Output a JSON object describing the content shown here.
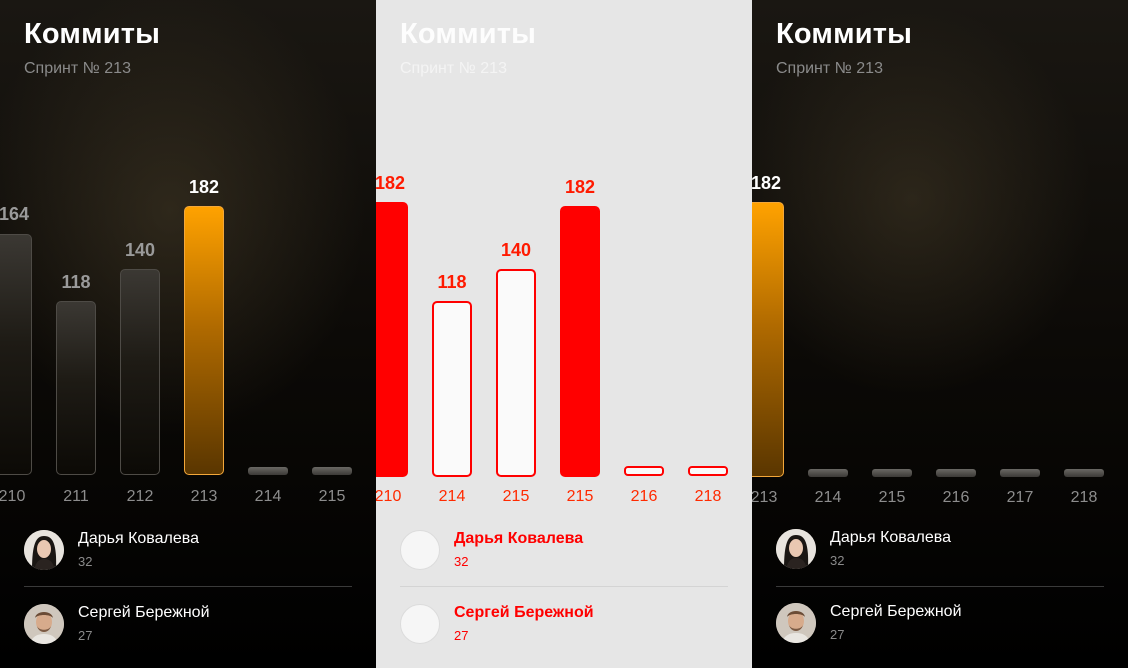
{
  "screen": {
    "title": "Коммиты",
    "subtitle": "Спринт № 213"
  },
  "panels": [
    {
      "theme": "dark",
      "bars": [
        {
          "sprint": "210",
          "value": "164"
        },
        {
          "sprint": "211",
          "value": "118"
        },
        {
          "sprint": "212",
          "value": "140"
        },
        {
          "sprint": "213",
          "value": "182"
        },
        {
          "sprint": "214",
          "value": ""
        },
        {
          "sprint": "215",
          "value": ""
        }
      ],
      "active_sprint": "213"
    },
    {
      "theme": "diff",
      "bars": [
        {
          "sprint": "210",
          "value": "182"
        },
        {
          "sprint": "214",
          "value": "118"
        },
        {
          "sprint": "215",
          "value": "140"
        },
        {
          "sprint": "215",
          "value": "182"
        },
        {
          "sprint": "216",
          "value": ""
        },
        {
          "sprint": "218",
          "value": ""
        }
      ]
    },
    {
      "theme": "dark",
      "bars": [
        {
          "sprint": "213",
          "value": "182"
        },
        {
          "sprint": "214",
          "value": ""
        },
        {
          "sprint": "215",
          "value": ""
        },
        {
          "sprint": "216",
          "value": ""
        },
        {
          "sprint": "217",
          "value": ""
        },
        {
          "sprint": "218",
          "value": ""
        }
      ],
      "active_sprint": "213"
    }
  ],
  "people": [
    {
      "name": "Дарья Ковалева",
      "count": "32",
      "avatar_icon": "female-avatar-icon"
    },
    {
      "name": "Сергей Бережной",
      "count": "27",
      "avatar_icon": "male-avatar-icon"
    }
  ],
  "colors": {
    "accent": "#ff9900",
    "diff_red": "#ff0000",
    "bar_dark": "#3b3833",
    "text_muted": "#8a8a8a"
  },
  "chart_data": [
    {
      "type": "bar",
      "title": "Коммиты",
      "subtitle": "Спринт № 213",
      "categories": [
        "210",
        "211",
        "212",
        "213",
        "214",
        "215"
      ],
      "values": [
        164,
        118,
        140,
        182,
        0,
        0
      ],
      "highlighted": "213",
      "ylim": [
        0,
        200
      ]
    },
    {
      "type": "bar",
      "title": "Коммиты",
      "subtitle": "Спринт № 213",
      "categories": [
        "213",
        "214",
        "215",
        "216",
        "217",
        "218"
      ],
      "values": [
        182,
        0,
        0,
        0,
        0,
        0
      ],
      "highlighted": "213",
      "ylim": [
        0,
        200
      ]
    }
  ]
}
